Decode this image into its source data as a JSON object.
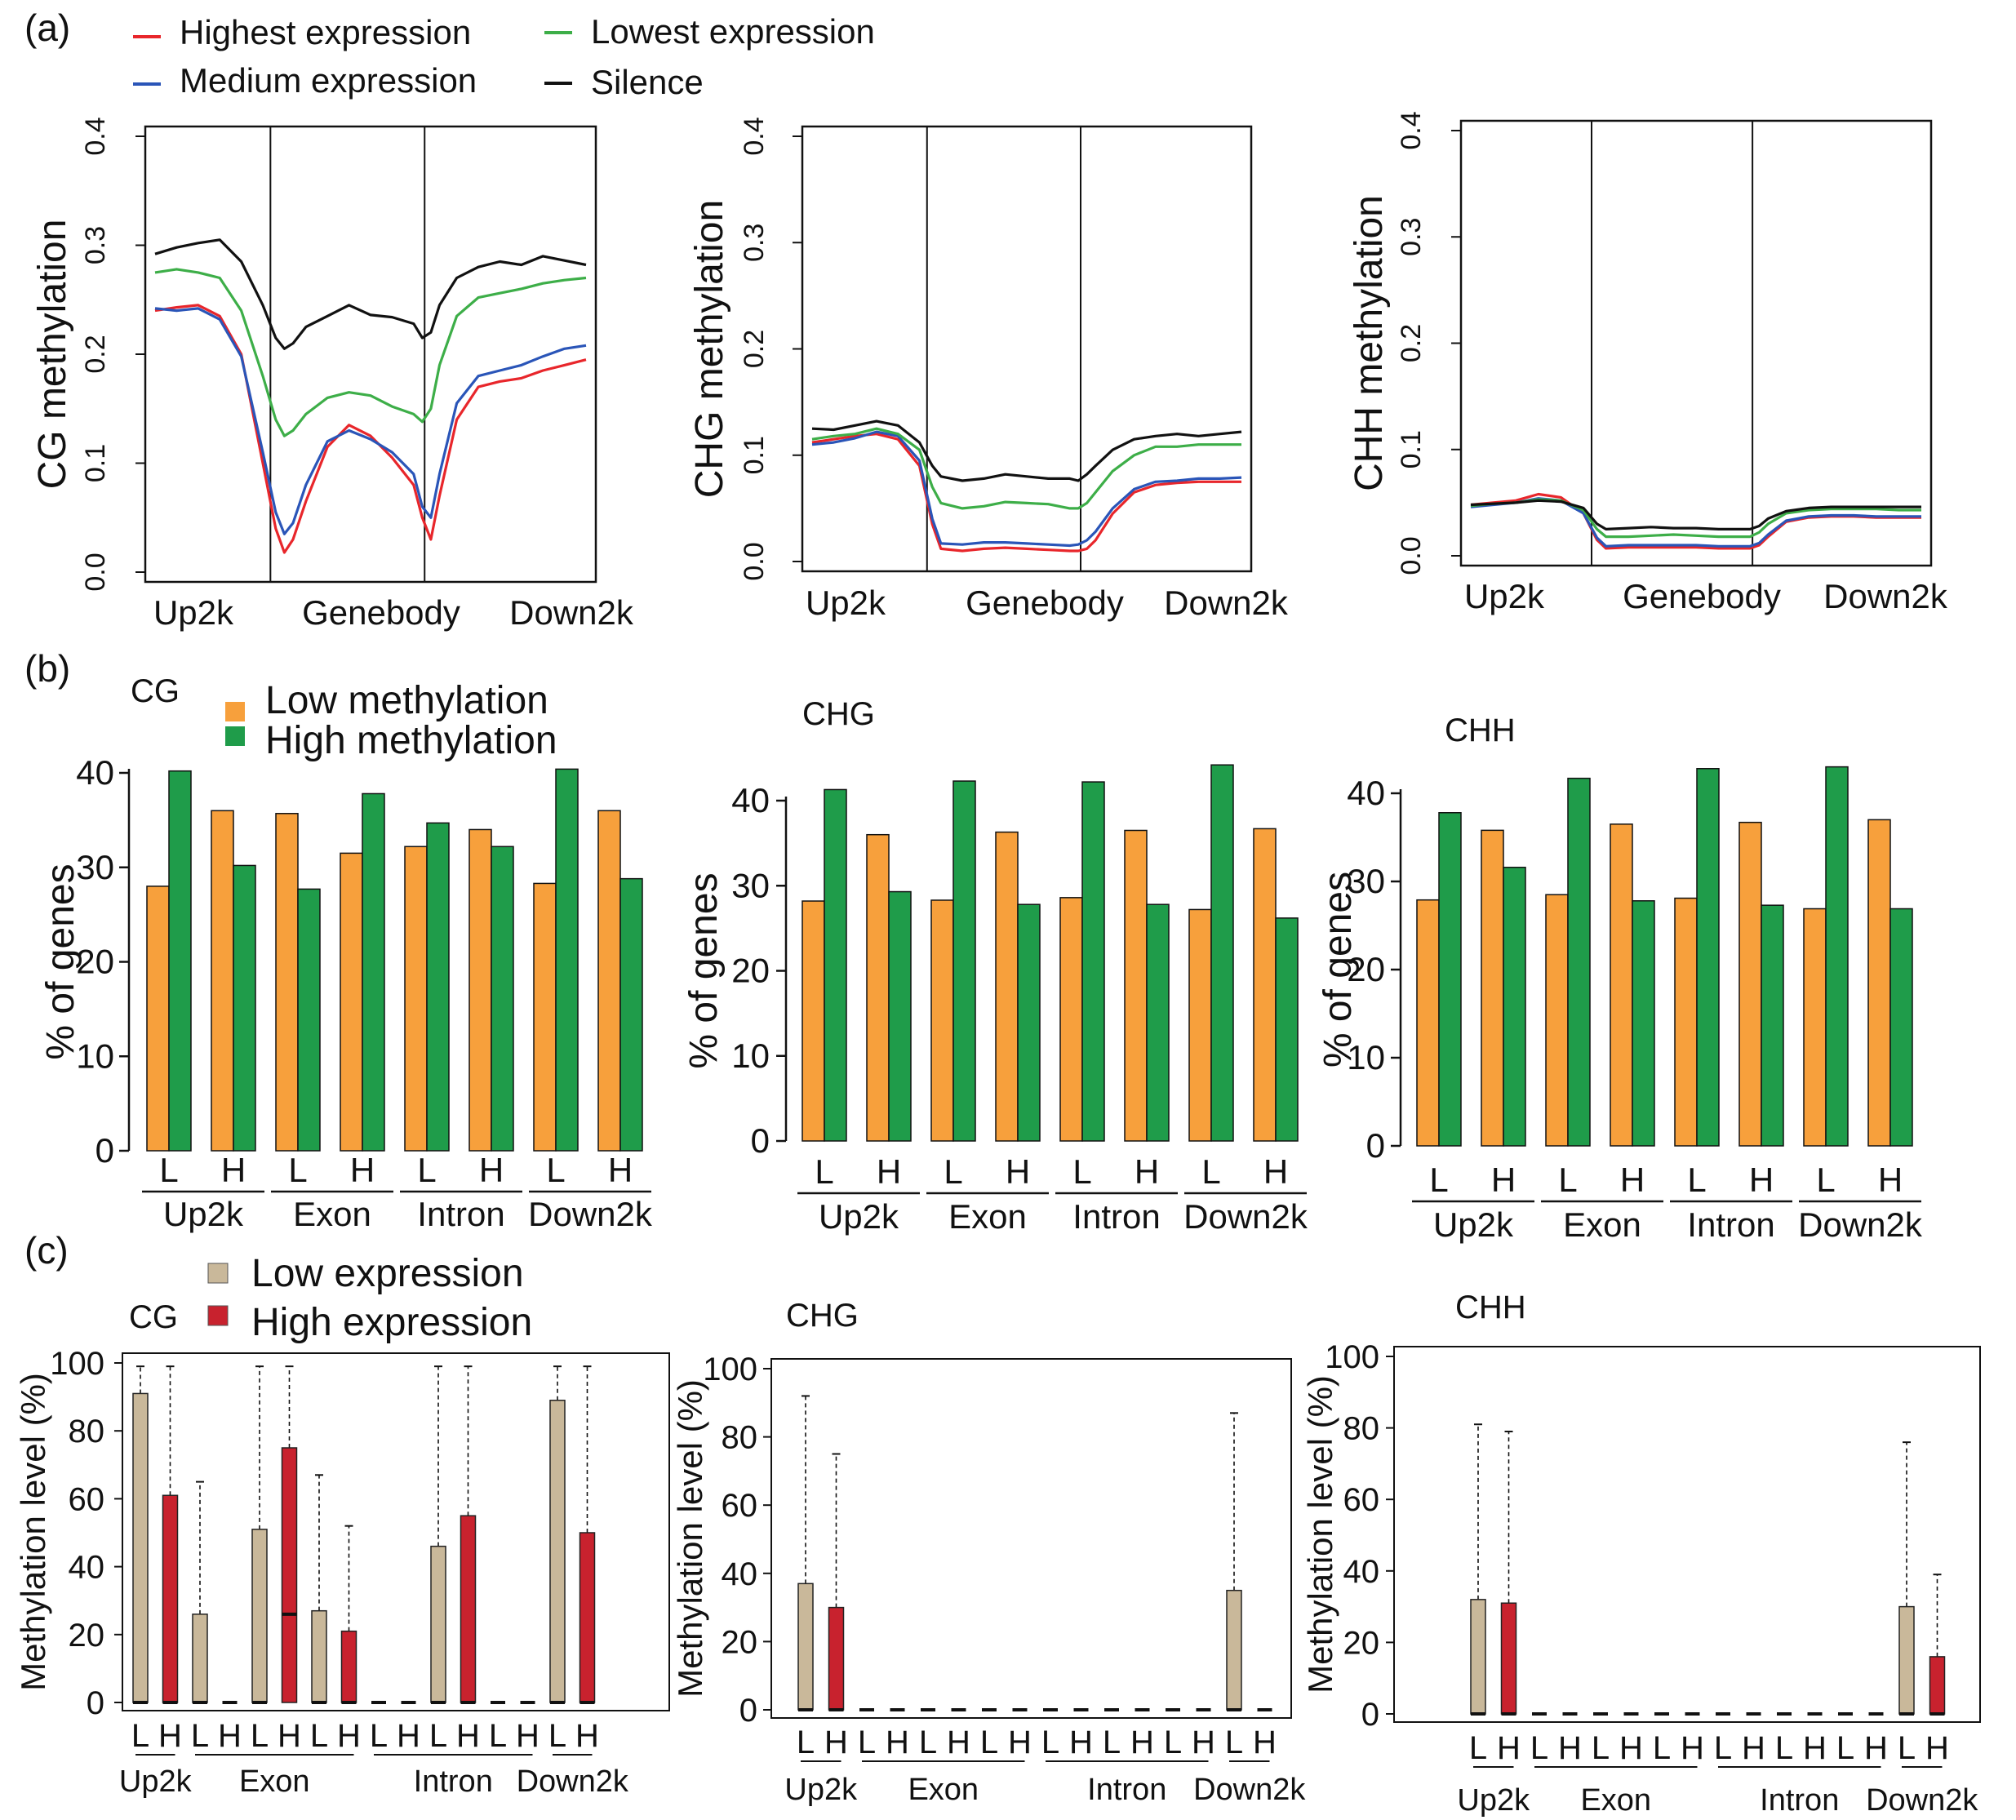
{
  "figure": {
    "colors": {
      "highest": "#e8262b",
      "medium": "#2a55b8",
      "lowest": "#3dae48",
      "silence": "#111111",
      "low_meth": "#f7a03c",
      "high_meth": "#1f9c4a",
      "low_expr": "#c9b89a",
      "high_expr": "#c8222e"
    },
    "panel_a": {
      "label": "(a)",
      "legend": [
        "Highest expression",
        "Medium expression",
        "Lowest expression",
        "Silence"
      ]
    },
    "panel_b": {
      "label": "(b)",
      "legend": [
        "Low methylation",
        "High methylation"
      ]
    },
    "panel_c": {
      "label": "(c)",
      "legend": [
        "Low expression",
        "High expression"
      ]
    }
  },
  "chart_data": [
    {
      "id": "a_cg",
      "type": "line",
      "title": "",
      "xlabel": "",
      "ylabel": "CG methylation",
      "ylim": [
        0,
        0.4
      ],
      "yticks": [
        "0.0",
        "0.1",
        "0.2",
        "0.3",
        "0.4"
      ],
      "x_regions": [
        "Up2k",
        "Genebody",
        "Down2k"
      ],
      "x": [
        0,
        0.05,
        0.1,
        0.15,
        0.2,
        0.25,
        0.28,
        0.3,
        0.32,
        0.35,
        0.4,
        0.45,
        0.5,
        0.55,
        0.6,
        0.62,
        0.64,
        0.66,
        0.7,
        0.75,
        0.8,
        0.85,
        0.9,
        0.95,
        1.0
      ],
      "series": [
        {
          "name": "Highest expression",
          "values": [
            0.24,
            0.243,
            0.245,
            0.235,
            0.2,
            0.1,
            0.04,
            0.018,
            0.03,
            0.065,
            0.115,
            0.135,
            0.125,
            0.105,
            0.08,
            0.05,
            0.03,
            0.07,
            0.14,
            0.17,
            0.175,
            0.178,
            0.185,
            0.19,
            0.195
          ]
        },
        {
          "name": "Medium expression",
          "values": [
            0.242,
            0.24,
            0.242,
            0.232,
            0.198,
            0.11,
            0.055,
            0.035,
            0.045,
            0.08,
            0.12,
            0.13,
            0.122,
            0.11,
            0.09,
            0.06,
            0.05,
            0.09,
            0.155,
            0.18,
            0.185,
            0.19,
            0.198,
            0.205,
            0.208
          ]
        },
        {
          "name": "Lowest expression",
          "values": [
            0.275,
            0.278,
            0.275,
            0.27,
            0.24,
            0.18,
            0.14,
            0.125,
            0.13,
            0.145,
            0.16,
            0.165,
            0.162,
            0.152,
            0.145,
            0.138,
            0.15,
            0.19,
            0.235,
            0.252,
            0.256,
            0.26,
            0.265,
            0.268,
            0.27
          ]
        },
        {
          "name": "Silence",
          "values": [
            0.292,
            0.298,
            0.302,
            0.305,
            0.285,
            0.245,
            0.215,
            0.205,
            0.21,
            0.225,
            0.235,
            0.245,
            0.236,
            0.234,
            0.228,
            0.215,
            0.22,
            0.245,
            0.27,
            0.28,
            0.285,
            0.282,
            0.29,
            0.286,
            0.282
          ]
        }
      ]
    },
    {
      "id": "a_chg",
      "type": "line",
      "title": "",
      "xlabel": "",
      "ylabel": "CHG methylation",
      "ylim": [
        0,
        0.4
      ],
      "yticks": [
        "0.0",
        "0.1",
        "0.2",
        "0.3",
        "0.4"
      ],
      "x_regions": [
        "Up2k",
        "Genebody",
        "Down2k"
      ],
      "x": [
        0,
        0.05,
        0.1,
        0.15,
        0.2,
        0.25,
        0.28,
        0.3,
        0.35,
        0.4,
        0.45,
        0.5,
        0.55,
        0.6,
        0.62,
        0.64,
        0.66,
        0.7,
        0.75,
        0.8,
        0.85,
        0.9,
        0.95,
        1.0
      ],
      "series": [
        {
          "name": "Highest expression",
          "values": [
            0.112,
            0.115,
            0.118,
            0.12,
            0.115,
            0.09,
            0.035,
            0.012,
            0.01,
            0.012,
            0.013,
            0.012,
            0.011,
            0.01,
            0.01,
            0.012,
            0.02,
            0.045,
            0.065,
            0.072,
            0.074,
            0.075,
            0.075,
            0.075
          ]
        },
        {
          "name": "Medium expression",
          "values": [
            0.11,
            0.112,
            0.116,
            0.122,
            0.118,
            0.095,
            0.04,
            0.017,
            0.016,
            0.018,
            0.018,
            0.017,
            0.016,
            0.015,
            0.016,
            0.02,
            0.028,
            0.05,
            0.068,
            0.075,
            0.076,
            0.078,
            0.078,
            0.079
          ]
        },
        {
          "name": "Lowest expression",
          "values": [
            0.115,
            0.118,
            0.12,
            0.125,
            0.12,
            0.105,
            0.07,
            0.055,
            0.05,
            0.052,
            0.056,
            0.055,
            0.054,
            0.05,
            0.05,
            0.055,
            0.065,
            0.085,
            0.1,
            0.108,
            0.108,
            0.11,
            0.11,
            0.11
          ]
        },
        {
          "name": "Silence",
          "values": [
            0.125,
            0.124,
            0.128,
            0.132,
            0.128,
            0.112,
            0.09,
            0.08,
            0.076,
            0.078,
            0.082,
            0.08,
            0.078,
            0.078,
            0.076,
            0.082,
            0.09,
            0.105,
            0.115,
            0.118,
            0.12,
            0.118,
            0.12,
            0.122
          ]
        }
      ]
    },
    {
      "id": "a_chh",
      "type": "line",
      "title": "",
      "xlabel": "",
      "ylabel": "CHH methylation",
      "ylim": [
        0,
        0.4
      ],
      "yticks": [
        "0.0",
        "0.1",
        "0.2",
        "0.3",
        "0.4"
      ],
      "x_regions": [
        "Up2k",
        "Genebody",
        "Down2k"
      ],
      "x": [
        0,
        0.05,
        0.1,
        0.15,
        0.2,
        0.25,
        0.28,
        0.3,
        0.35,
        0.4,
        0.45,
        0.5,
        0.55,
        0.6,
        0.62,
        0.64,
        0.66,
        0.7,
        0.75,
        0.8,
        0.85,
        0.9,
        0.95,
        1.0
      ],
      "series": [
        {
          "name": "Highest expression",
          "values": [
            0.048,
            0.05,
            0.052,
            0.058,
            0.055,
            0.04,
            0.015,
            0.007,
            0.008,
            0.008,
            0.008,
            0.008,
            0.007,
            0.007,
            0.007,
            0.01,
            0.018,
            0.032,
            0.036,
            0.037,
            0.037,
            0.036,
            0.036,
            0.036
          ]
        },
        {
          "name": "Medium expression",
          "values": [
            0.046,
            0.048,
            0.05,
            0.054,
            0.052,
            0.04,
            0.017,
            0.009,
            0.01,
            0.01,
            0.01,
            0.01,
            0.009,
            0.009,
            0.009,
            0.012,
            0.02,
            0.033,
            0.037,
            0.038,
            0.038,
            0.037,
            0.037,
            0.037
          ]
        },
        {
          "name": "Lowest expression",
          "values": [
            0.047,
            0.049,
            0.05,
            0.053,
            0.052,
            0.043,
            0.025,
            0.018,
            0.018,
            0.019,
            0.02,
            0.019,
            0.018,
            0.018,
            0.018,
            0.022,
            0.03,
            0.04,
            0.043,
            0.044,
            0.044,
            0.044,
            0.043,
            0.043
          ]
        },
        {
          "name": "Silence",
          "values": [
            0.048,
            0.049,
            0.05,
            0.052,
            0.051,
            0.045,
            0.03,
            0.025,
            0.026,
            0.027,
            0.026,
            0.026,
            0.025,
            0.025,
            0.025,
            0.028,
            0.035,
            0.042,
            0.045,
            0.046,
            0.046,
            0.046,
            0.046,
            0.046
          ]
        }
      ]
    },
    {
      "id": "b_cg",
      "type": "bar",
      "title": "CG",
      "xlabel": "",
      "ylabel": "% of genes",
      "ylim": [
        0,
        40
      ],
      "yticks": [
        "0",
        "10",
        "20",
        "30",
        "40"
      ],
      "categories": [
        "L",
        "H",
        "L",
        "H",
        "L",
        "H",
        "L",
        "H"
      ],
      "groups": [
        "Up2k",
        "Exon",
        "Intron",
        "Down2k"
      ],
      "series": [
        {
          "name": "Low methylation",
          "values": [
            28,
            36,
            35.7,
            31.5,
            32.2,
            34,
            28.3,
            36
          ]
        },
        {
          "name": "High methylation",
          "values": [
            40.2,
            30.2,
            27.7,
            37.8,
            34.7,
            32.2,
            40.4,
            28.8
          ]
        }
      ]
    },
    {
      "id": "b_chg",
      "type": "bar",
      "title": "CHG",
      "xlabel": "",
      "ylabel": "% of genes",
      "ylim": [
        0,
        40
      ],
      "yticks": [
        "0",
        "10",
        "20",
        "30",
        "40"
      ],
      "categories": [
        "L",
        "H",
        "L",
        "H",
        "L",
        "H",
        "L",
        "H"
      ],
      "groups": [
        "Up2k",
        "Exon",
        "Intron",
        "Down2k"
      ],
      "series": [
        {
          "name": "Low methylation",
          "values": [
            28.2,
            36,
            28.3,
            36.3,
            28.6,
            36.5,
            27.2,
            36.7
          ]
        },
        {
          "name": "High methylation",
          "values": [
            41.3,
            29.3,
            42.3,
            27.8,
            42.2,
            27.8,
            44.2,
            26.2
          ]
        }
      ]
    },
    {
      "id": "b_chh",
      "type": "bar",
      "title": "CHH",
      "xlabel": "",
      "ylabel": "% of genes",
      "ylim": [
        0,
        40
      ],
      "yticks": [
        "0",
        "10",
        "20",
        "30",
        "40"
      ],
      "categories": [
        "L",
        "H",
        "L",
        "H",
        "L",
        "H",
        "L",
        "H"
      ],
      "groups": [
        "Up2k",
        "Exon",
        "Intron",
        "Down2k"
      ],
      "series": [
        {
          "name": "Low methylation",
          "values": [
            27.9,
            35.8,
            28.5,
            36.5,
            28.1,
            36.7,
            26.9,
            37
          ]
        },
        {
          "name": "High methylation",
          "values": [
            37.8,
            31.6,
            41.7,
            27.8,
            42.8,
            27.3,
            43,
            26.9
          ]
        }
      ]
    },
    {
      "id": "c_cg",
      "type": "box",
      "title": "CG",
      "xlabel": "",
      "ylabel": "Methylation level (%)",
      "ylim": [
        0,
        100
      ],
      "yticks": [
        "0",
        "20",
        "40",
        "60",
        "80",
        "100"
      ],
      "categories": [
        "L",
        "H",
        "L",
        "H",
        "L",
        "H",
        "L",
        "H",
        "L",
        "H",
        "L",
        "H",
        "L",
        "H",
        "L",
        "H"
      ],
      "groups": [
        "Up2k",
        "Exon",
        "Intron",
        "Down2k"
      ],
      "boxes": [
        {
          "q3": 91,
          "whisker": 99,
          "median": 0
        },
        {
          "q3": 61,
          "whisker": 99,
          "median": 0
        },
        {
          "q3": 26,
          "whisker": 65,
          "median": 0
        },
        {
          "q3": 0,
          "whisker": 0,
          "median": 0
        },
        {
          "q3": 51,
          "whisker": 99,
          "median": 0
        },
        {
          "q3": 75,
          "whisker": 99,
          "median": 26
        },
        {
          "q3": 27,
          "whisker": 67,
          "median": 0
        },
        {
          "q3": 21,
          "whisker": 52,
          "median": 0
        },
        {
          "q3": 0,
          "whisker": 0,
          "median": 0
        },
        {
          "q3": 0,
          "whisker": 0,
          "median": 0
        },
        {
          "q3": 46,
          "whisker": 99,
          "median": 0
        },
        {
          "q3": 55,
          "whisker": 99,
          "median": 0
        },
        {
          "q3": 0,
          "whisker": 0,
          "median": 0
        },
        {
          "q3": 0,
          "whisker": 0,
          "median": 0
        },
        {
          "q3": 89,
          "whisker": 99,
          "median": 0
        },
        {
          "q3": 50,
          "whisker": 99,
          "median": 0
        }
      ]
    },
    {
      "id": "c_chg",
      "type": "box",
      "title": "CHG",
      "xlabel": "",
      "ylabel": "Methylation level (%)",
      "ylim": [
        0,
        100
      ],
      "yticks": [
        "0",
        "20",
        "40",
        "60",
        "80",
        "100"
      ],
      "categories": [
        "L",
        "H",
        "L",
        "H",
        "L",
        "H",
        "L",
        "H",
        "L",
        "H",
        "L",
        "H",
        "L",
        "H",
        "L",
        "H"
      ],
      "groups": [
        "Up2k",
        "Exon",
        "Intron",
        "Down2k"
      ],
      "boxes": [
        {
          "q3": 37,
          "whisker": 92,
          "median": 0
        },
        {
          "q3": 30,
          "whisker": 75,
          "median": 0
        },
        {
          "q3": 0,
          "whisker": 0,
          "median": 0
        },
        {
          "q3": 0,
          "whisker": 0,
          "median": 0
        },
        {
          "q3": 0,
          "whisker": 0,
          "median": 0
        },
        {
          "q3": 0,
          "whisker": 0,
          "median": 0
        },
        {
          "q3": 0,
          "whisker": 0,
          "median": 0
        },
        {
          "q3": 0,
          "whisker": 0,
          "median": 0
        },
        {
          "q3": 0,
          "whisker": 0,
          "median": 0
        },
        {
          "q3": 0,
          "whisker": 0,
          "median": 0
        },
        {
          "q3": 0,
          "whisker": 0,
          "median": 0
        },
        {
          "q3": 0,
          "whisker": 0,
          "median": 0
        },
        {
          "q3": 0,
          "whisker": 0,
          "median": 0
        },
        {
          "q3": 0,
          "whisker": 0,
          "median": 0
        },
        {
          "q3": 35,
          "whisker": 87,
          "median": 0
        },
        {
          "q3": 0,
          "whisker": 0,
          "median": 0
        }
      ]
    },
    {
      "id": "c_chh",
      "type": "box",
      "title": "CHH",
      "xlabel": "",
      "ylabel": "Methylation level (%)",
      "ylim": [
        0,
        100
      ],
      "yticks": [
        "0",
        "20",
        "40",
        "60",
        "80",
        "100"
      ],
      "categories": [
        "L",
        "H",
        "L",
        "H",
        "L",
        "H",
        "L",
        "H",
        "L",
        "H",
        "L",
        "H",
        "L",
        "H",
        "L",
        "H"
      ],
      "groups": [
        "Up2k",
        "Exon",
        "Intron",
        "Down2k"
      ],
      "boxes": [
        {
          "q3": 32,
          "whisker": 81,
          "median": 0
        },
        {
          "q3": 31,
          "whisker": 79,
          "median": 0
        },
        {
          "q3": 0,
          "whisker": 0,
          "median": 0
        },
        {
          "q3": 0,
          "whisker": 0,
          "median": 0
        },
        {
          "q3": 0,
          "whisker": 0,
          "median": 0
        },
        {
          "q3": 0,
          "whisker": 0,
          "median": 0
        },
        {
          "q3": 0,
          "whisker": 0,
          "median": 0
        },
        {
          "q3": 0,
          "whisker": 0,
          "median": 0
        },
        {
          "q3": 0,
          "whisker": 0,
          "median": 0
        },
        {
          "q3": 0,
          "whisker": 0,
          "median": 0
        },
        {
          "q3": 0,
          "whisker": 0,
          "median": 0
        },
        {
          "q3": 0,
          "whisker": 0,
          "median": 0
        },
        {
          "q3": 0,
          "whisker": 0,
          "median": 0
        },
        {
          "q3": 0,
          "whisker": 0,
          "median": 0
        },
        {
          "q3": 30,
          "whisker": 76,
          "median": 0
        },
        {
          "q3": 16,
          "whisker": 39,
          "median": 0
        }
      ]
    }
  ]
}
